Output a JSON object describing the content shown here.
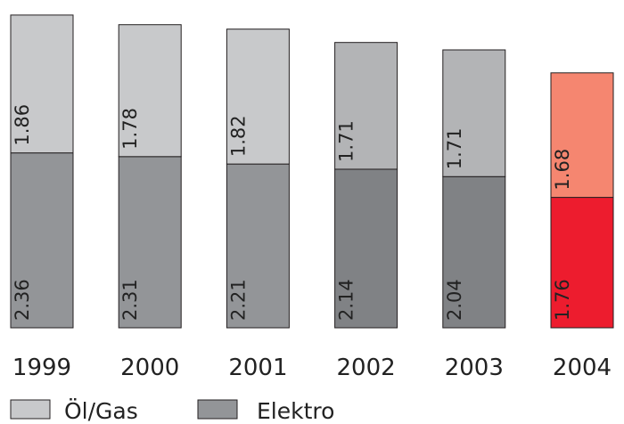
{
  "chart_data": {
    "type": "bar",
    "stacked": true,
    "categories": [
      "1999",
      "2000",
      "2001",
      "2002",
      "2003",
      "2004"
    ],
    "series": [
      {
        "name": "Elektro",
        "values": [
          2.36,
          2.31,
          2.21,
          2.14,
          2.04,
          1.76
        ],
        "labels": [
          "2.36",
          "2.31",
          "2.21",
          "2.14",
          "2.04",
          "1.76"
        ],
        "colors": [
          "#939598",
          "#939598",
          "#939598",
          "#808285",
          "#808285",
          "#ed1c2e"
        ]
      },
      {
        "name": "Öl/Gas",
        "values": [
          1.86,
          1.78,
          1.82,
          1.71,
          1.71,
          1.68
        ],
        "labels": [
          "1.86",
          "1.78",
          "1.82",
          "1.71",
          "1.71",
          "1.68"
        ],
        "colors": [
          "#c8c9cb",
          "#c8c9cb",
          "#c8c9cb",
          "#b3b4b6",
          "#b3b4b6",
          "#f58670"
        ]
      }
    ],
    "legend": {
      "placement": "bottom-left",
      "items": [
        {
          "label": "Öl/Gas",
          "color": "#c8c9cb"
        },
        {
          "label": "Elektro",
          "color": "#939598"
        }
      ]
    },
    "title": "",
    "xlabel": "",
    "ylabel": "",
    "ylim": [
      0,
      4.25
    ],
    "grid": false,
    "value_label_orientation": "vertical"
  }
}
